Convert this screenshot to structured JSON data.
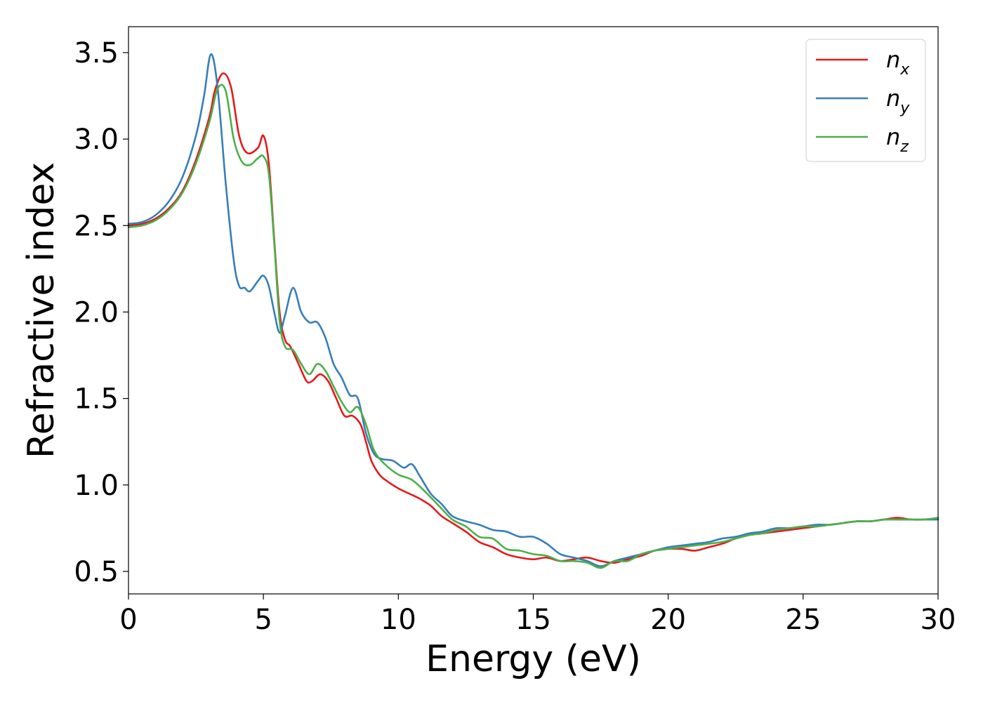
{
  "chart_data": {
    "type": "line",
    "xlabel": "Energy (eV)",
    "ylabel": "Refractive index",
    "xlim": [
      0,
      30
    ],
    "ylim": [
      0.37,
      3.65
    ],
    "xticks": [
      0,
      5,
      10,
      15,
      20,
      25,
      30
    ],
    "xtick_labels": [
      "0",
      "5",
      "10",
      "15",
      "20",
      "25",
      "30"
    ],
    "yticks": [
      0.5,
      1.0,
      1.5,
      2.0,
      2.5,
      3.0,
      3.5
    ],
    "ytick_labels": [
      "0.5",
      "1.0",
      "1.5",
      "2.0",
      "2.5",
      "3.0",
      "3.5"
    ],
    "grid": false,
    "legend_position": "top-right",
    "series": [
      {
        "name": "n_x",
        "label_main": "n",
        "label_sub": "x",
        "color": "#e41a1c",
        "x": [
          0,
          0.5,
          1,
          1.5,
          2,
          2.5,
          3,
          3.2,
          3.5,
          3.8,
          4.1,
          4.4,
          4.8,
          5.0,
          5.2,
          5.4,
          5.6,
          5.8,
          6.0,
          6.3,
          6.6,
          6.8,
          7.1,
          7.4,
          7.7,
          8.0,
          8.3,
          8.6,
          8.8,
          9.0,
          9.3,
          9.6,
          10.0,
          10.4,
          10.8,
          11.2,
          11.6,
          12.0,
          12.5,
          13.0,
          13.5,
          14.0,
          14.5,
          15.0,
          15.5,
          16.0,
          16.5,
          17.0,
          17.5,
          18.0,
          18.5,
          19.0,
          19.5,
          20.0,
          20.5,
          21.0,
          21.5,
          22.0,
          22.5,
          23.0,
          23.5,
          24.0,
          24.5,
          25.0,
          25.5,
          26.0,
          26.5,
          27.0,
          27.5,
          28.0,
          28.5,
          29.0,
          29.5,
          30.0
        ],
        "y": [
          2.5,
          2.51,
          2.54,
          2.6,
          2.7,
          2.88,
          3.13,
          3.28,
          3.38,
          3.3,
          3.02,
          2.92,
          2.95,
          3.02,
          2.86,
          2.42,
          2.0,
          1.84,
          1.8,
          1.7,
          1.6,
          1.6,
          1.64,
          1.6,
          1.5,
          1.4,
          1.4,
          1.35,
          1.25,
          1.14,
          1.06,
          1.02,
          0.98,
          0.95,
          0.92,
          0.88,
          0.82,
          0.78,
          0.73,
          0.67,
          0.64,
          0.6,
          0.58,
          0.57,
          0.58,
          0.56,
          0.57,
          0.58,
          0.56,
          0.55,
          0.57,
          0.59,
          0.62,
          0.63,
          0.63,
          0.62,
          0.64,
          0.66,
          0.69,
          0.71,
          0.72,
          0.73,
          0.74,
          0.75,
          0.76,
          0.77,
          0.78,
          0.79,
          0.79,
          0.8,
          0.81,
          0.8,
          0.8,
          0.81
        ]
      },
      {
        "name": "n_y",
        "label_main": "n",
        "label_sub": "y",
        "color": "#377eb8",
        "x": [
          0,
          0.5,
          1,
          1.5,
          2,
          2.5,
          2.8,
          3.05,
          3.3,
          3.6,
          3.9,
          4.1,
          4.3,
          4.5,
          4.8,
          5.0,
          5.2,
          5.4,
          5.6,
          5.8,
          6.1,
          6.4,
          6.7,
          7.0,
          7.3,
          7.6,
          7.9,
          8.2,
          8.5,
          8.8,
          9.1,
          9.4,
          9.8,
          10.2,
          10.5,
          10.8,
          11.2,
          11.6,
          12.0,
          12.5,
          13.0,
          13.5,
          14.0,
          14.5,
          15.0,
          15.5,
          16.0,
          16.5,
          17.0,
          17.5,
          18.0,
          18.5,
          19.0,
          19.5,
          20.0,
          20.5,
          21.0,
          21.5,
          22.0,
          22.5,
          23.0,
          23.5,
          24.0,
          24.5,
          25.0,
          25.5,
          26.0,
          26.5,
          27.0,
          27.5,
          28.0,
          28.5,
          29.0,
          29.5,
          30.0
        ],
        "y": [
          2.51,
          2.52,
          2.56,
          2.64,
          2.78,
          3.02,
          3.25,
          3.49,
          3.3,
          2.75,
          2.3,
          2.15,
          2.14,
          2.12,
          2.18,
          2.21,
          2.15,
          2.0,
          1.88,
          1.98,
          2.14,
          2.0,
          1.94,
          1.94,
          1.85,
          1.7,
          1.62,
          1.52,
          1.5,
          1.3,
          1.18,
          1.15,
          1.14,
          1.1,
          1.12,
          1.05,
          0.95,
          0.89,
          0.82,
          0.79,
          0.77,
          0.74,
          0.73,
          0.7,
          0.7,
          0.66,
          0.6,
          0.58,
          0.56,
          0.53,
          0.56,
          0.58,
          0.6,
          0.62,
          0.64,
          0.65,
          0.66,
          0.67,
          0.69,
          0.7,
          0.72,
          0.73,
          0.75,
          0.75,
          0.76,
          0.77,
          0.77,
          0.78,
          0.79,
          0.79,
          0.8,
          0.8,
          0.8,
          0.8,
          0.8
        ]
      },
      {
        "name": "n_z",
        "label_main": "n",
        "label_sub": "z",
        "color": "#4daf4a",
        "x": [
          0,
          0.5,
          1,
          1.5,
          2,
          2.5,
          3.0,
          3.3,
          3.6,
          3.9,
          4.2,
          4.5,
          4.8,
          5.0,
          5.2,
          5.4,
          5.6,
          5.8,
          6.1,
          6.4,
          6.7,
          7.0,
          7.3,
          7.6,
          7.9,
          8.2,
          8.5,
          8.8,
          9.1,
          9.5,
          10.0,
          10.5,
          11.0,
          11.5,
          12.0,
          12.5,
          13.0,
          13.5,
          14.0,
          14.5,
          15.0,
          15.5,
          16.0,
          16.5,
          17.0,
          17.5,
          18.0,
          18.5,
          19.0,
          19.5,
          20.0,
          20.5,
          21.0,
          21.5,
          22.0,
          22.5,
          23.0,
          23.5,
          24.0,
          24.5,
          25.0,
          25.5,
          26.0,
          26.5,
          27.0,
          27.5,
          28.0,
          28.5,
          29.0,
          29.5,
          30.0
        ],
        "y": [
          2.49,
          2.5,
          2.53,
          2.59,
          2.69,
          2.86,
          3.1,
          3.29,
          3.28,
          3.0,
          2.87,
          2.85,
          2.89,
          2.9,
          2.8,
          2.4,
          1.95,
          1.8,
          1.78,
          1.7,
          1.64,
          1.7,
          1.66,
          1.57,
          1.48,
          1.42,
          1.45,
          1.35,
          1.2,
          1.12,
          1.06,
          1.03,
          0.96,
          0.88,
          0.8,
          0.76,
          0.7,
          0.69,
          0.63,
          0.62,
          0.6,
          0.59,
          0.56,
          0.56,
          0.55,
          0.52,
          0.56,
          0.56,
          0.6,
          0.62,
          0.63,
          0.64,
          0.65,
          0.66,
          0.67,
          0.69,
          0.71,
          0.72,
          0.74,
          0.75,
          0.76,
          0.76,
          0.77,
          0.78,
          0.79,
          0.79,
          0.8,
          0.8,
          0.8,
          0.8,
          0.81
        ]
      }
    ]
  }
}
